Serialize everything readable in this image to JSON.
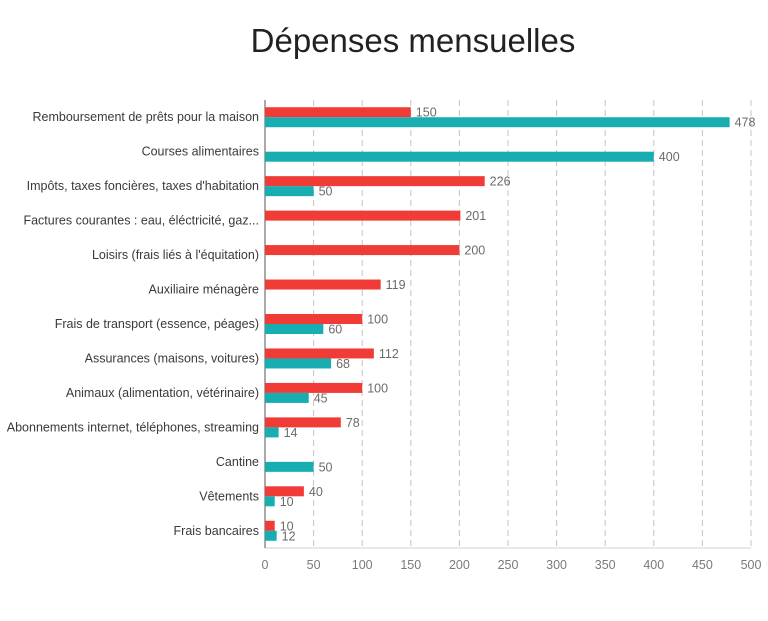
{
  "chart_data": {
    "type": "bar",
    "orientation": "horizontal",
    "title": "Dépenses mensuelles",
    "xlabel": "",
    "ylabel": "",
    "xlim": [
      0,
      500
    ],
    "xticks": [
      0,
      50,
      100,
      150,
      200,
      250,
      300,
      350,
      400,
      450,
      500
    ],
    "grid": true,
    "legend": "none",
    "categories": [
      "Remboursement de prêts pour la maison",
      "Courses alimentaires",
      "Impôts, taxes foncières, taxes d'habitation",
      "Factures courantes : eau, éléctricité, gaz...",
      "Loisirs (frais liés à l'équitation)",
      "Auxiliaire ménagère",
      "Frais de transport (essence, péages)",
      "Assurances (maisons, voitures)",
      "Animaux (alimentation, vétérinaire)",
      "Abonnements internet, téléphones, streaming",
      "Cantine",
      "Vêtements",
      "Frais bancaires"
    ],
    "series": [
      {
        "color": "#f03b36",
        "values": [
          150,
          null,
          226,
          201,
          200,
          119,
          100,
          112,
          100,
          78,
          null,
          40,
          10
        ]
      },
      {
        "color": "#18adb0",
        "values": [
          478,
          400,
          50,
          null,
          null,
          null,
          60,
          68,
          45,
          14,
          50,
          10,
          12
        ]
      }
    ]
  }
}
